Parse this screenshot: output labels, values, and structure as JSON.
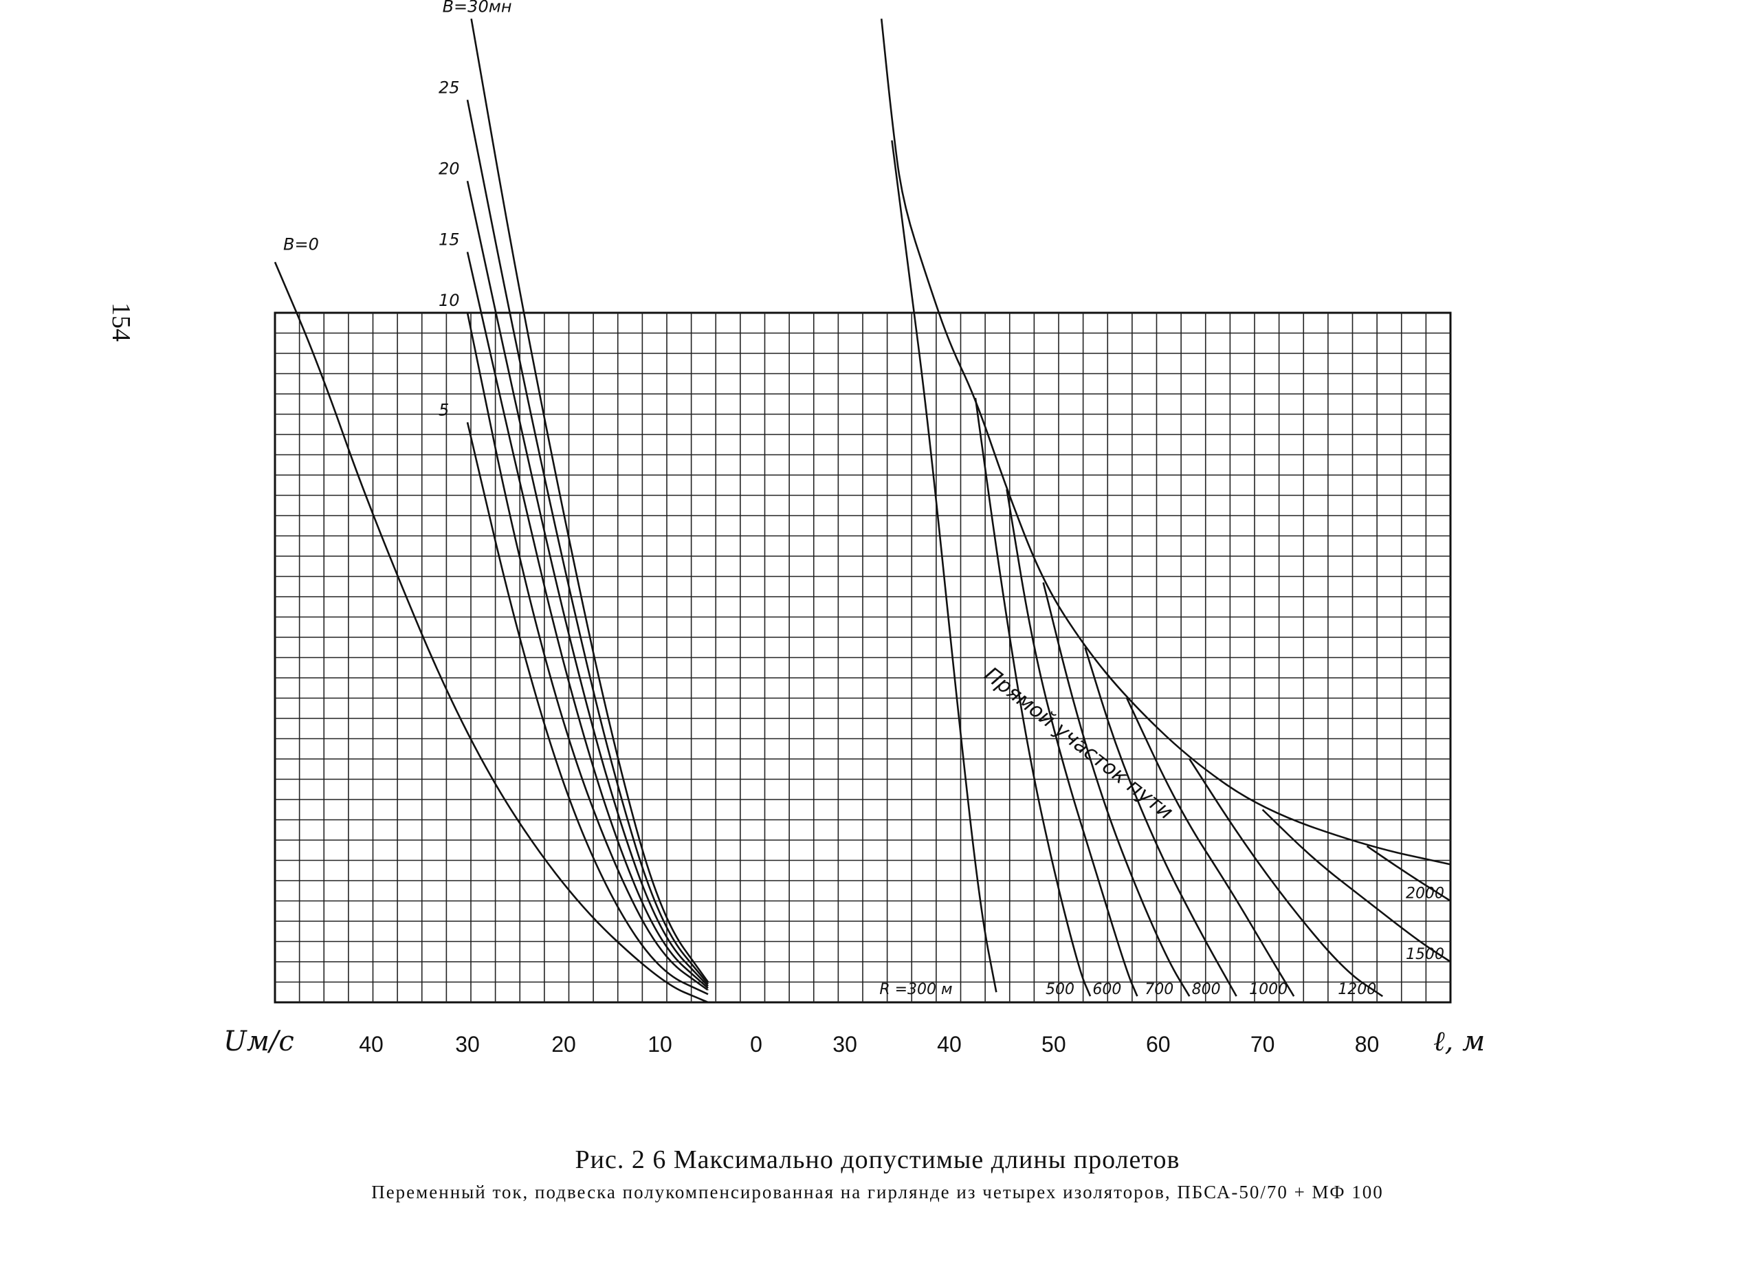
{
  "page_number": "154",
  "chart_data": {
    "type": "line",
    "title": "Рис. 2 6  Максимально допустимые длины пролетов",
    "subtitle": "Переменный ток, подвеска полукомпенсированная на гирлянде из четырех изоляторов, ПБСА-50/70 + МФ 100",
    "left_panel": {
      "xlabel": "Uм/с",
      "x_ticks": [
        "40",
        "30",
        "20",
        "10",
        "0"
      ],
      "x_axis_reversed": true,
      "xlim": [
        50,
        0
      ],
      "family_label": "В",
      "series": [
        {
          "name": "В=0",
          "label": "В=0",
          "points": [
            [
              50,
              70
            ],
            [
              45.5,
              65
            ],
            [
              40,
              57.6
            ],
            [
              30,
              46.3
            ],
            [
              20,
              39
            ],
            [
              10,
              34.5
            ],
            [
              5,
              33.5
            ]
          ]
        },
        {
          "name": "5",
          "label": "5",
          "points": [
            [
              30,
              62.1
            ],
            [
              25,
              52
            ],
            [
              20,
              44
            ],
            [
              15,
              38.5
            ],
            [
              10,
              35
            ],
            [
              5,
              33.9
            ]
          ]
        },
        {
          "name": "10",
          "label": "10",
          "points": [
            [
              30,
              67.5
            ],
            [
              25,
              56
            ],
            [
              20,
              47
            ],
            [
              15,
              40.5
            ],
            [
              10,
              35.8
            ],
            [
              5,
              34.1
            ]
          ]
        },
        {
          "name": "15",
          "label": "15",
          "points": [
            [
              30,
              70.5
            ],
            [
              25,
              60
            ],
            [
              20,
              50
            ],
            [
              15,
              42
            ],
            [
              10,
              36.3
            ],
            [
              5,
              34.2
            ]
          ]
        },
        {
          "name": "20",
          "label": "20",
          "points": [
            [
              30,
              74
            ],
            [
              25,
              63
            ],
            [
              20,
              52.5
            ],
            [
              15,
              43.5
            ],
            [
              10,
              36.8
            ],
            [
              5,
              34.3
            ]
          ]
        },
        {
          "name": "25",
          "label": "25",
          "points": [
            [
              30,
              78
            ],
            [
              25,
              66
            ],
            [
              20,
              55
            ],
            [
              15,
              45
            ],
            [
              10,
              37.3
            ],
            [
              5,
              34.4
            ]
          ]
        },
        {
          "name": "В=30мн",
          "label": "В=30мн",
          "points": [
            [
              29.6,
              82
            ],
            [
              25,
              69.5
            ],
            [
              20,
              57.5
            ],
            [
              15,
              46.5
            ],
            [
              10,
              37.8
            ],
            [
              5,
              34.5
            ]
          ]
        }
      ]
    },
    "right_panel": {
      "xlabel": "ℓ, м",
      "x_ticks": [
        "30",
        "40",
        "50",
        "60",
        "70",
        "80"
      ],
      "xlim": [
        21.5,
        88
      ],
      "family_label": "R",
      "envelope_label": "Прямой участок пути",
      "envelope": [
        [
          33.5,
          82
        ],
        [
          34.5,
          77
        ],
        [
          35.5,
          73
        ],
        [
          38,
          69
        ],
        [
          40,
          66
        ],
        [
          42.5,
          63.3
        ],
        [
          45.5,
          58.8
        ],
        [
          49,
          54.2
        ],
        [
          53,
          51
        ],
        [
          57,
          48.5
        ],
        [
          63,
          45.5
        ],
        [
          70,
          43
        ],
        [
          80,
          41.2
        ],
        [
          88,
          40.3
        ]
      ],
      "series": [
        {
          "name": "R=300 м",
          "label": "R =300 м",
          "points": [
            [
              34.5,
              76
            ],
            [
              36,
              70
            ],
            [
              38,
              62
            ],
            [
              41,
              47
            ],
            [
              43,
              38
            ],
            [
              44.5,
              34
            ]
          ]
        },
        {
          "name": "500",
          "label": "500",
          "points": [
            [
              42.5,
              63.3
            ],
            [
              45,
              54
            ],
            [
              47.5,
              46
            ],
            [
              50,
              40
            ],
            [
              52.5,
              35
            ],
            [
              53.5,
              33.8
            ]
          ]
        },
        {
          "name": "600",
          "label": "600",
          "points": [
            [
              45.5,
              58.8
            ],
            [
              48,
              51
            ],
            [
              51,
              45
            ],
            [
              54,
              40
            ],
            [
              57,
              35
            ],
            [
              58,
              33.8
            ]
          ]
        },
        {
          "name": "700",
          "label": "700",
          "points": [
            [
              49,
              54.2
            ],
            [
              52,
              48
            ],
            [
              55,
              43
            ],
            [
              58,
              39
            ],
            [
              61,
              35.5
            ],
            [
              63,
              33.8
            ]
          ]
        },
        {
          "name": "800",
          "label": "800",
          "points": [
            [
              53,
              51
            ],
            [
              56,
              46
            ],
            [
              60,
              41
            ],
            [
              64,
              37
            ],
            [
              67.5,
              33.8
            ]
          ]
        },
        {
          "name": "1000",
          "label": "1000",
          "points": [
            [
              57,
              48.5
            ],
            [
              62,
              43
            ],
            [
              67,
              39
            ],
            [
              71,
              35.5
            ],
            [
              73,
              33.8
            ]
          ]
        },
        {
          "name": "1200",
          "label": "1200",
          "points": [
            [
              63,
              45.5
            ],
            [
              68,
              41.5
            ],
            [
              73,
              38
            ],
            [
              78,
              35
            ],
            [
              81.5,
              33.8
            ]
          ]
        },
        {
          "name": "1500",
          "label": "1500",
          "points": [
            [
              70,
              43
            ],
            [
              75,
              40.5
            ],
            [
              80,
              38.5
            ],
            [
              85,
              36.5
            ],
            [
              88,
              35.5
            ]
          ]
        },
        {
          "name": "2000",
          "label": "2000",
          "points": [
            [
              80,
              41.2
            ],
            [
              84,
              39.8
            ],
            [
              88,
              38.5
            ]
          ]
        }
      ]
    }
  }
}
